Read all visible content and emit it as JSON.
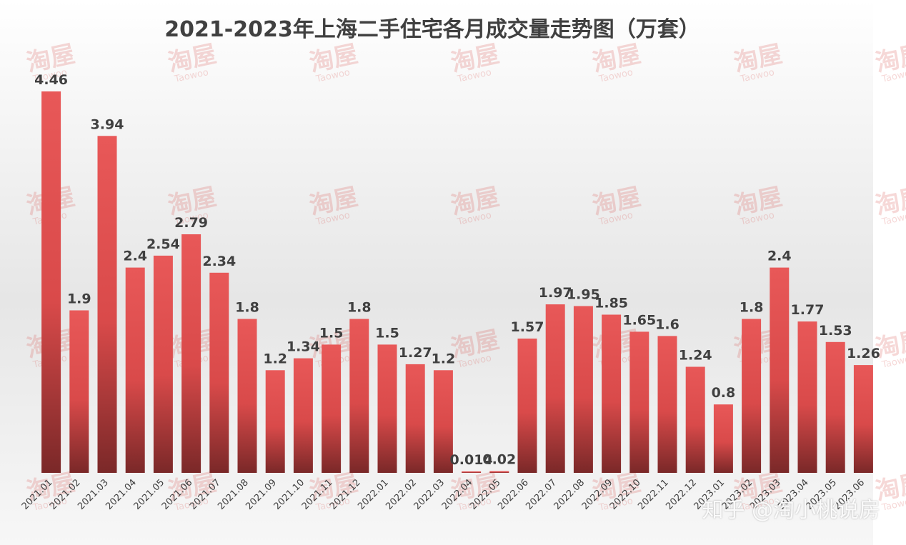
{
  "chart_data": {
    "type": "bar",
    "title": "2021-2023年上海二手住宅各月成交量走势图（万套）",
    "xlabel": "",
    "ylabel": "",
    "ylim": [
      0,
      5
    ],
    "grid": false,
    "categories": [
      "2021.01",
      "2021.02",
      "2021.03",
      "2021.04",
      "2021.05",
      "2021.06",
      "2021.07",
      "2021.08",
      "2021.09",
      "2021.10",
      "2021.11",
      "2021.12",
      "2022.01",
      "2022.02",
      "2022.03",
      "2022.04",
      "2022.05",
      "2022.06",
      "2022.07",
      "2022.08",
      "2022.09",
      "2022.10",
      "2022.11",
      "2022.12",
      "2023.01",
      "2023.02",
      "2023.03",
      "2023.04",
      "2023.05",
      "2023.06"
    ],
    "values": [
      4.46,
      1.9,
      3.94,
      2.4,
      2.54,
      2.79,
      2.34,
      1.8,
      1.2,
      1.34,
      1.5,
      1.8,
      1.5,
      1.27,
      1.2,
      0.014,
      0.02,
      1.57,
      1.97,
      1.95,
      1.85,
      1.65,
      1.6,
      1.24,
      0.8,
      1.8,
      2.4,
      1.77,
      1.53,
      1.26
    ],
    "value_labels": [
      "4.46",
      "1.9",
      "3.94",
      "2.4",
      "2.54",
      "2.79",
      "2.34",
      "1.8",
      "1.2",
      "1.34",
      "1.5",
      "1.8",
      "1.5",
      "1.27",
      "1.2",
      "0.014",
      "0.02",
      "1.57",
      "1.97",
      "1.95",
      "1.85",
      "1.65",
      "1.6",
      "1.24",
      "0.8",
      "1.8",
      "2.4",
      "1.77",
      "1.53",
      "1.26"
    ],
    "bar_color": "#e85858",
    "bar_color_dark": "#7a2828"
  },
  "watermark": {
    "logo_text": "淘屋",
    "logo_sub": "Taowoo",
    "footer_text": "知乎 @淘小桃说房"
  }
}
